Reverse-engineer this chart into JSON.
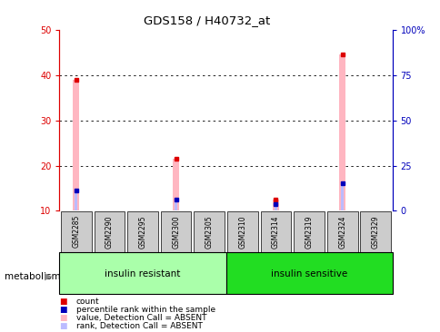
{
  "title": "GDS158 / H40732_at",
  "samples": [
    "GSM2285",
    "GSM2290",
    "GSM2295",
    "GSM2300",
    "GSM2305",
    "GSM2310",
    "GSM2314",
    "GSM2319",
    "GSM2324",
    "GSM2329"
  ],
  "groups": [
    {
      "label": "insulin resistant",
      "color": "#AAFFAA",
      "count": 5
    },
    {
      "label": "insulin sensitive",
      "color": "#22DD22",
      "count": 5
    }
  ],
  "group_label": "metabolism",
  "ylim_left": [
    10,
    50
  ],
  "ylim_right": [
    0,
    100
  ],
  "yticks_left": [
    10,
    20,
    30,
    40,
    50
  ],
  "yticks_right": [
    0,
    25,
    50,
    75,
    100
  ],
  "yticklabels_right": [
    "0",
    "25",
    "50",
    "75",
    "100%"
  ],
  "absent_value_bars": [
    39.0,
    0,
    0,
    21.5,
    0,
    0,
    12.5,
    0,
    44.5,
    0
  ],
  "absent_rank_bars": [
    14.5,
    0,
    0,
    12.5,
    0,
    0,
    11.5,
    0,
    16.0,
    0
  ],
  "absent_value_color": "#FFB6C1",
  "absent_rank_color": "#BBBBFF",
  "count_color": "#DD0000",
  "rank_color": "#0000BB",
  "background_color": "#FFFFFF",
  "sample_box_color": "#CCCCCC"
}
